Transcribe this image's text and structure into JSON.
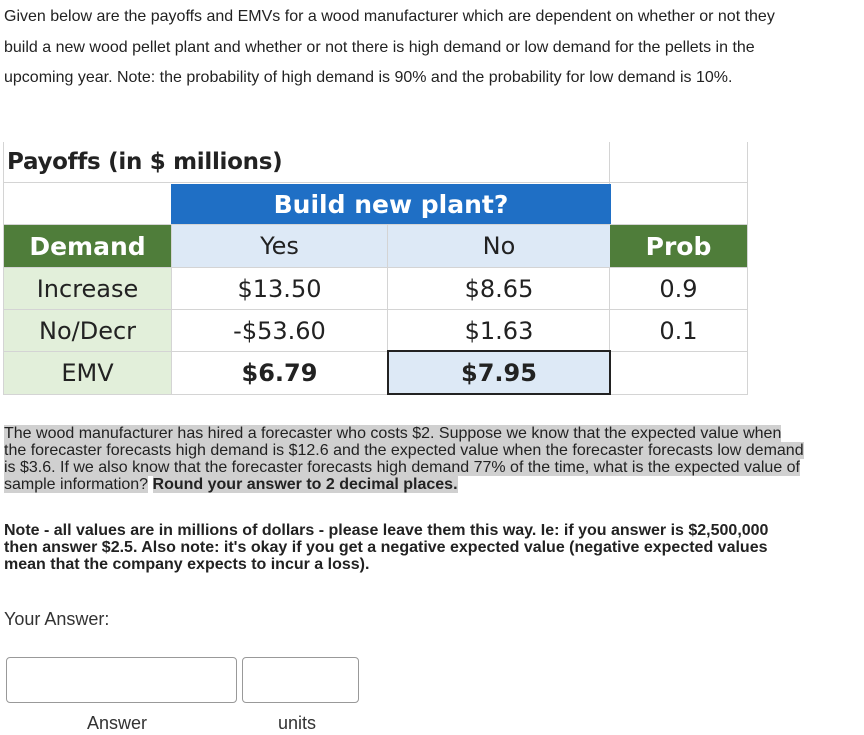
{
  "intro": "Given below are the payoffs and EMVs for a wood manufacturer which are dependent on whether or not they build a new wood pellet plant and whether or not there is high demand or low demand for the pellets in the upcoming year.  Note: the probability of high demand is 90% and the probability for low demand is 10%.",
  "table": {
    "title": "Payoffs (in $ millions)",
    "group_header": "Build new plant?",
    "headers": {
      "demand": "Demand",
      "yes": "Yes",
      "no": "No",
      "prob": "Prob"
    },
    "rows": [
      {
        "label": "Increase",
        "yes": "$13.50",
        "no": "$8.65",
        "prob": "0.9"
      },
      {
        "label": "No/Decr",
        "yes": "-$53.60",
        "no": "$1.63",
        "prob": "0.1"
      },
      {
        "label": "EMV",
        "yes": "$6.79",
        "no": "$7.95",
        "prob": ""
      }
    ],
    "colors": {
      "build_header": "#1f6fc5",
      "demand_header": "#4f7d3a",
      "label_fill": "#e2efda",
      "yes_no_header_fill": "#dde9f6"
    }
  },
  "question": {
    "text": "The wood manufacturer has hired a forecaster who costs $2.  Suppose we know that the expected value when the forecaster forecasts high demand is $12.6 and the expected value when the forecaster forecasts low demand is $3.6.  If we also know that the forecaster forecasts high demand 77% of the time, what is the expected value of sample information?",
    "bold_text": "Round your answer to 2 decimal places."
  },
  "note": "Note - all values are in millions of dollars - please leave them this way.  Ie: if you answer is $2,500,000 then answer $2.5.  Also note: it's okay if you get a negative expected value (negative expected values mean that the company expects to incur a loss).",
  "answer_section": {
    "title": "Your Answer:",
    "answer_label": "Answer",
    "units_label": "units",
    "answer_value": "",
    "units_value": ""
  }
}
